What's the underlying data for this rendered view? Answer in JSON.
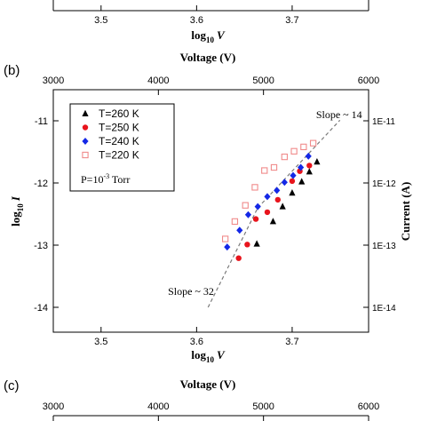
{
  "panel_b_label": "(b)",
  "panel_c_label": "(c)",
  "chart_data": [
    {
      "panel": "a",
      "type": "scatter",
      "xlabel_base": "log",
      "xlabel_sub": "10",
      "xlabel_var": "V",
      "x_ticks": [
        "3.5",
        "3.6",
        "3.7"
      ],
      "xlim": [
        3.45,
        3.78
      ]
    },
    {
      "panel": "b",
      "type": "scatter",
      "top_xlabel": "Voltage (V)",
      "top_ticks": [
        "3000",
        "4000",
        "5000",
        "6000"
      ],
      "top_range": [
        3000,
        6000
      ],
      "xlabel_base": "log",
      "xlabel_sub": "10",
      "xlabel_var": "V",
      "x_ticks": [
        "3.5",
        "3.6",
        "3.7"
      ],
      "xlim": [
        3.45,
        3.78
      ],
      "ylabel_base": "log",
      "ylabel_sub": "10",
      "ylabel_var": "I",
      "y_ticks": [
        "-11",
        "-12",
        "-13",
        "-14"
      ],
      "ylim": [
        -14.4,
        -10.5
      ],
      "right_ylabel": "Current (A)",
      "right_ticks": [
        "1E-11",
        "1E-12",
        "1E-13",
        "1E-14"
      ],
      "legend_position": "top-left",
      "legend_note_base": "P=10",
      "legend_note_exp": "-3",
      "legend_note_unit": " Torr",
      "series": [
        {
          "name": "T=260 K",
          "marker": "triangle",
          "color": "#000000",
          "x": [
            3.663,
            3.68,
            3.69,
            3.7,
            3.71,
            3.718,
            3.726
          ],
          "y": [
            -12.98,
            -12.62,
            -12.38,
            -12.16,
            -11.98,
            -11.82,
            -11.66
          ]
        },
        {
          "name": "T=250 K",
          "marker": "circle",
          "color": "#e8141c",
          "x": [
            3.644,
            3.653,
            3.662,
            3.674,
            3.685,
            3.7,
            3.708,
            3.718
          ],
          "y": [
            -13.21,
            -12.99,
            -12.58,
            -12.47,
            -12.27,
            -11.97,
            -11.81,
            -11.72
          ]
        },
        {
          "name": "T=240 K",
          "marker": "diamond",
          "color": "#1428e6",
          "x": [
            3.632,
            3.645,
            3.654,
            3.664,
            3.674,
            3.684,
            3.692,
            3.701,
            3.709,
            3.717
          ],
          "y": [
            -13.03,
            -12.76,
            -12.51,
            -12.38,
            -12.22,
            -12.12,
            -11.99,
            -11.88,
            -11.75,
            -11.57
          ]
        },
        {
          "name": "T=220 K",
          "marker": "square-open",
          "color": "#f08a8a",
          "x": [
            3.63,
            3.64,
            3.651,
            3.661,
            3.671,
            3.681,
            3.692,
            3.702,
            3.712,
            3.722
          ],
          "y": [
            -12.9,
            -12.62,
            -12.36,
            -12.07,
            -11.8,
            -11.75,
            -11.58,
            -11.49,
            -11.42,
            -11.36
          ]
        }
      ],
      "annotations": [
        {
          "text": "Slope ~ 14",
          "x": 3.725,
          "y": -10.96
        },
        {
          "text": "Slope ~ 32",
          "x": 3.57,
          "y": -13.8
        }
      ],
      "fit_lines": [
        {
          "x": [
            3.612,
            3.664
          ],
          "y": [
            -14.0,
            -12.4
          ]
        },
        {
          "x": [
            3.664,
            3.75
          ],
          "y": [
            -12.4,
            -10.99
          ]
        }
      ]
    },
    {
      "panel": "c",
      "type": "scatter",
      "top_xlabel": "Voltage (V)",
      "top_ticks": [
        "3000",
        "4000",
        "5000",
        "6000"
      ],
      "top_range": [
        3000,
        6000
      ]
    }
  ]
}
